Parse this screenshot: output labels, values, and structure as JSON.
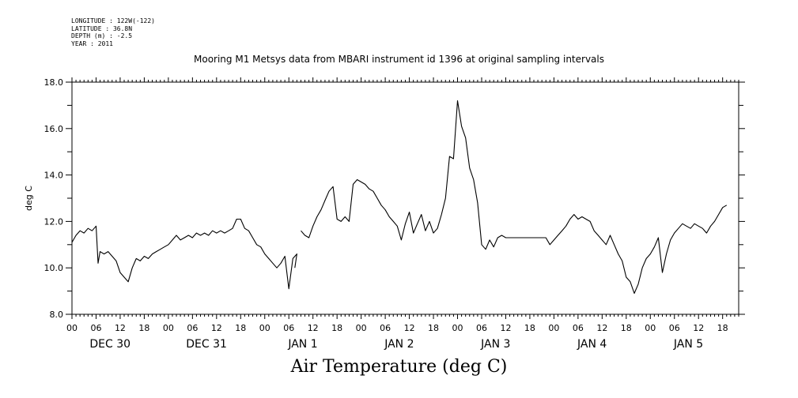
{
  "meta": {
    "longitude": "LONGITUDE : 122W(-122)",
    "latitude": "LATITUDE : 36.8N",
    "depth": "DEPTH (m) : -2.5",
    "year": "YEAR : 2011"
  },
  "chart_data": {
    "type": "line",
    "title": "Mooring M1 Metsys data from MBARI instrument id 1396 at original sampling intervals",
    "xlabel": "Air Temperature (deg C)",
    "ylabel": "deg C",
    "ylim": [
      8.0,
      18.0
    ],
    "y_ticks": [
      "8.0",
      "10.0",
      "12.0",
      "14.0",
      "16.0",
      "18.0"
    ],
    "x_unit": "hours since DEC 30 00:00, 2011",
    "xlim": [
      0,
      166
    ],
    "hour_tick_labels": [
      "00",
      "06",
      "12",
      "18"
    ],
    "days": [
      "DEC 30",
      "DEC 31",
      "JAN  1",
      "JAN  2",
      "JAN  3",
      "JAN  4",
      "JAN  5"
    ],
    "grid": false,
    "series": [
      {
        "name": "Air Temperature",
        "color": "#000000",
        "segments": [
          [
            [
              0,
              11.1
            ],
            [
              1,
              11.4
            ],
            [
              2,
              11.6
            ],
            [
              3,
              11.5
            ],
            [
              4,
              11.7
            ],
            [
              5,
              11.6
            ],
            [
              6,
              11.8
            ],
            [
              6.5,
              10.2
            ],
            [
              7,
              10.7
            ],
            [
              8,
              10.6
            ],
            [
              9,
              10.7
            ],
            [
              10,
              10.5
            ],
            [
              11,
              10.3
            ],
            [
              12,
              9.8
            ],
            [
              13,
              9.6
            ],
            [
              14,
              9.4
            ],
            [
              15,
              10.0
            ],
            [
              16,
              10.4
            ],
            [
              17,
              10.3
            ],
            [
              18,
              10.5
            ],
            [
              19,
              10.4
            ],
            [
              20,
              10.6
            ],
            [
              21,
              10.7
            ],
            [
              22,
              10.8
            ],
            [
              23,
              10.9
            ],
            [
              24,
              11.0
            ],
            [
              25,
              11.2
            ],
            [
              26,
              11.4
            ],
            [
              27,
              11.2
            ],
            [
              28,
              11.3
            ],
            [
              29,
              11.4
            ],
            [
              30,
              11.3
            ],
            [
              31,
              11.5
            ],
            [
              32,
              11.4
            ],
            [
              33,
              11.5
            ],
            [
              34,
              11.4
            ],
            [
              35,
              11.6
            ],
            [
              36,
              11.5
            ],
            [
              37,
              11.6
            ],
            [
              38,
              11.5
            ],
            [
              39,
              11.6
            ],
            [
              40,
              11.7
            ],
            [
              41,
              12.1
            ],
            [
              42,
              12.1
            ],
            [
              43,
              11.7
            ],
            [
              44,
              11.6
            ],
            [
              45,
              11.3
            ],
            [
              46,
              11.0
            ],
            [
              47,
              10.9
            ],
            [
              48,
              10.6
            ],
            [
              49,
              10.4
            ],
            [
              50,
              10.2
            ],
            [
              51,
              10.0
            ],
            [
              52,
              10.2
            ],
            [
              53,
              10.5
            ],
            [
              54,
              9.1
            ],
            [
              55,
              10.4
            ],
            [
              56,
              10.6
            ],
            [
              55.5,
              10.0
            ]
          ],
          [
            [
              57,
              11.6
            ],
            [
              58,
              11.4
            ],
            [
              59,
              11.3
            ],
            [
              60,
              11.8
            ],
            [
              61,
              12.2
            ],
            [
              62,
              12.5
            ],
            [
              63,
              12.9
            ],
            [
              64,
              13.3
            ],
            [
              65,
              13.5
            ],
            [
              66,
              12.1
            ],
            [
              67,
              12.0
            ],
            [
              68,
              12.2
            ],
            [
              69,
              12.0
            ],
            [
              70,
              13.6
            ],
            [
              71,
              13.8
            ],
            [
              72,
              13.7
            ],
            [
              73,
              13.6
            ],
            [
              74,
              13.4
            ],
            [
              75,
              13.3
            ],
            [
              76,
              13.0
            ],
            [
              77,
              12.7
            ],
            [
              78,
              12.5
            ],
            [
              79,
              12.2
            ],
            [
              80,
              12.0
            ],
            [
              81,
              11.8
            ],
            [
              82,
              11.2
            ],
            [
              83,
              11.9
            ],
            [
              84,
              12.4
            ],
            [
              85,
              11.5
            ],
            [
              86,
              11.9
            ],
            [
              87,
              12.3
            ],
            [
              88,
              11.6
            ],
            [
              89,
              12.0
            ],
            [
              90,
              11.5
            ],
            [
              91,
              11.7
            ],
            [
              92,
              12.3
            ],
            [
              93,
              13.0
            ],
            [
              94,
              14.8
            ],
            [
              95,
              14.7
            ],
            [
              96,
              17.2
            ],
            [
              97,
              16.1
            ],
            [
              98,
              15.6
            ],
            [
              99,
              14.3
            ],
            [
              100,
              13.8
            ],
            [
              101,
              12.8
            ],
            [
              102,
              11.0
            ],
            [
              103,
              10.8
            ],
            [
              104,
              11.2
            ],
            [
              105,
              10.9
            ],
            [
              106,
              11.3
            ],
            [
              107,
              11.4
            ],
            [
              108,
              11.3
            ],
            [
              112,
              11.3
            ],
            [
              116,
              11.3
            ],
            [
              118,
              11.3
            ],
            [
              119,
              11.0
            ],
            [
              120,
              11.2
            ],
            [
              121,
              11.4
            ],
            [
              122,
              11.6
            ],
            [
              123,
              11.8
            ],
            [
              124,
              12.1
            ],
            [
              125,
              12.3
            ],
            [
              126,
              12.1
            ],
            [
              127,
              12.2
            ],
            [
              128,
              12.1
            ],
            [
              129,
              12.0
            ],
            [
              130,
              11.6
            ],
            [
              131,
              11.4
            ],
            [
              132,
              11.2
            ],
            [
              133,
              11.0
            ],
            [
              134,
              11.4
            ],
            [
              135,
              11.0
            ],
            [
              136,
              10.6
            ],
            [
              137,
              10.3
            ],
            [
              138,
              9.6
            ],
            [
              139,
              9.4
            ],
            [
              140,
              8.9
            ],
            [
              141,
              9.3
            ],
            [
              142,
              10.0
            ],
            [
              143,
              10.4
            ],
            [
              144,
              10.6
            ],
            [
              145,
              10.9
            ],
            [
              146,
              11.3
            ],
            [
              147,
              9.8
            ],
            [
              148,
              10.6
            ],
            [
              149,
              11.2
            ],
            [
              150,
              11.5
            ],
            [
              151,
              11.7
            ],
            [
              152,
              11.9
            ],
            [
              153,
              11.8
            ],
            [
              154,
              11.7
            ],
            [
              155,
              11.9
            ],
            [
              156,
              11.8
            ],
            [
              157,
              11.7
            ],
            [
              158,
              11.5
            ],
            [
              159,
              11.8
            ],
            [
              160,
              12.0
            ],
            [
              161,
              12.3
            ],
            [
              162,
              12.6
            ],
            [
              163,
              12.7
            ]
          ]
        ]
      }
    ]
  }
}
